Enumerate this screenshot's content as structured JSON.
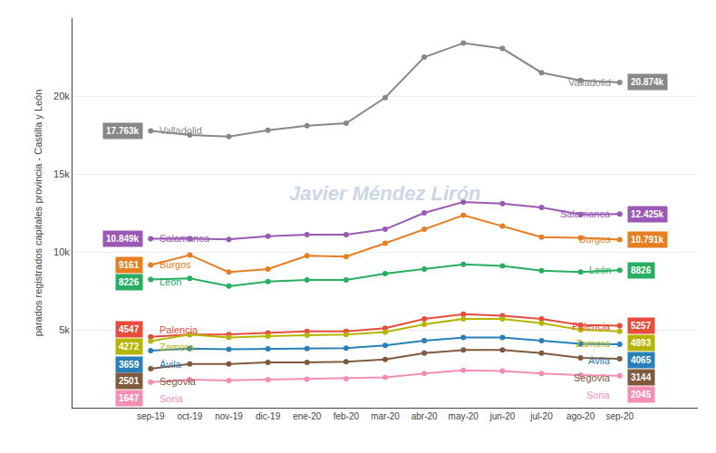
{
  "chart_data": {
    "type": "line",
    "categories": [
      "sep-19",
      "oct-19",
      "nov-19",
      "dic-19",
      "ene-20",
      "feb-20",
      "mar-20",
      "abr-20",
      "may-20",
      "jun-20",
      "jul-20",
      "ago-20",
      "sep-20"
    ],
    "series": [
      {
        "name": "Valladolid",
        "color": "#888888",
        "values": [
          17763,
          17500,
          17400,
          17800,
          18100,
          18250,
          19900,
          22500,
          23400,
          23050,
          21500,
          21000,
          20874
        ],
        "value_labels": [
          "17.763k",
          null,
          null,
          null,
          null,
          null,
          null,
          null,
          null,
          null,
          null,
          null,
          "20.874k"
        ]
      },
      {
        "name": "Salamanca",
        "color": "#9b59b6",
        "values": [
          10849,
          10860,
          10800,
          11000,
          11100,
          11100,
          11450,
          12500,
          13200,
          13100,
          12850,
          12400,
          12425
        ],
        "value_labels": [
          "10.849k",
          null,
          null,
          null,
          null,
          null,
          null,
          null,
          null,
          null,
          null,
          null,
          "12.425k"
        ]
      },
      {
        "name": "Burgos",
        "color": "#e67e22",
        "values": [
          9161,
          9800,
          8700,
          8900,
          9750,
          9700,
          10550,
          11450,
          12350,
          11650,
          10950,
          10900,
          10791
        ],
        "value_labels": [
          "9161",
          null,
          null,
          null,
          null,
          null,
          null,
          null,
          null,
          null,
          null,
          null,
          "10.791k"
        ]
      },
      {
        "name": "León",
        "color": "#27ae60",
        "values": [
          8226,
          8300,
          7800,
          8100,
          8200,
          8200,
          8600,
          8900,
          9200,
          9100,
          8800,
          8700,
          8826
        ],
        "value_labels": [
          "8226",
          null,
          null,
          null,
          null,
          null,
          null,
          null,
          null,
          null,
          null,
          null,
          "8826"
        ]
      },
      {
        "name": "Palencia",
        "color": "#e74c3c",
        "values": [
          4547,
          4700,
          4700,
          4800,
          4900,
          4900,
          5100,
          5700,
          6000,
          5900,
          5700,
          5300,
          5257
        ],
        "value_labels": [
          "4547",
          null,
          null,
          null,
          null,
          null,
          null,
          null,
          null,
          null,
          null,
          null,
          "5257"
        ]
      },
      {
        "name": "Zamora",
        "color": "#b5b500",
        "values": [
          4272,
          4700,
          4500,
          4600,
          4650,
          4700,
          4850,
          5350,
          5700,
          5700,
          5420,
          5000,
          4893
        ],
        "value_labels": [
          "4272",
          null,
          null,
          null,
          null,
          null,
          null,
          null,
          null,
          null,
          null,
          null,
          "4893"
        ]
      },
      {
        "name": "Ávila",
        "color": "#2980b9",
        "values": [
          3659,
          3800,
          3750,
          3780,
          3800,
          3820,
          4000,
          4300,
          4500,
          4500,
          4300,
          4100,
          4065
        ],
        "value_labels": [
          "3659",
          null,
          null,
          null,
          null,
          null,
          null,
          null,
          null,
          null,
          null,
          null,
          "4065"
        ]
      },
      {
        "name": "Segovia",
        "color": "#7f5a3e",
        "values": [
          2501,
          2800,
          2800,
          2900,
          2900,
          2950,
          3100,
          3500,
          3700,
          3700,
          3500,
          3200,
          3144
        ],
        "value_labels": [
          "2501",
          null,
          null,
          null,
          null,
          null,
          null,
          null,
          null,
          null,
          null,
          null,
          "3144"
        ]
      },
      {
        "name": "Soria",
        "color": "#f48fb1",
        "values": [
          1647,
          1800,
          1750,
          1800,
          1830,
          1860,
          1950,
          2200,
          2400,
          2350,
          2200,
          2100,
          2045
        ],
        "value_labels": [
          "1647",
          null,
          null,
          null,
          null,
          null,
          null,
          null,
          null,
          null,
          null,
          null,
          "2045"
        ]
      }
    ],
    "ylabel": "parados registrados capitales provincia - Castilla y León",
    "annotations": [
      "Javier Méndez Lirón"
    ],
    "ylim": [
      0,
      25000
    ],
    "yticks": [
      {
        "value": 5000,
        "label": "5k"
      },
      {
        "value": 10000,
        "label": "10k"
      },
      {
        "value": 15000,
        "label": "15k"
      },
      {
        "value": 20000,
        "label": "20k"
      }
    ],
    "grid": true,
    "marker": "circle"
  }
}
